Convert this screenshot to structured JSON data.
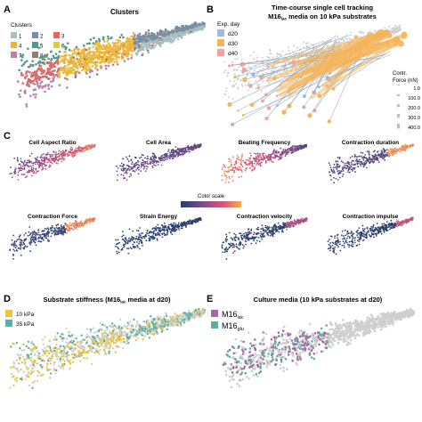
{
  "panels": {
    "a": {
      "letter": "A",
      "title": "Clusters",
      "legend_title": "Clusters",
      "clusters": [
        {
          "label": "1",
          "color": "#a9bfc2"
        },
        {
          "label": "2",
          "color": "#7a8fa3"
        },
        {
          "label": "3",
          "color": "#d96b6b"
        },
        {
          "label": "4",
          "color": "#f0b23c"
        },
        {
          "label": "5",
          "color": "#4e9c8a"
        },
        {
          "label": "6",
          "color": "#e0cc3f"
        },
        {
          "label": "7",
          "color": "#b783a9"
        },
        {
          "label": "8",
          "color": "#a07a66"
        }
      ]
    },
    "b": {
      "letter": "B",
      "title_line1": "Time-course single cell tracking",
      "title_line2_pre": "M16",
      "title_line2_sub": "lac",
      "title_line2_post": " media on 10 kPa substrates",
      "legend_title": "Exp. day",
      "days": [
        {
          "label": "d20",
          "color": "#9db8d9"
        },
        {
          "label": "d30",
          "color": "#f5b458"
        },
        {
          "label": "d40",
          "color": "#f1a1a1"
        }
      ],
      "force_title_line1": "Contr.",
      "force_title_line2": "Force (nN)",
      "force_values": [
        "1.0",
        "100.0",
        "200.0",
        "300.0",
        "400.0"
      ]
    },
    "c": {
      "letter": "C",
      "subpanels": [
        "Cell Aspect Ratio",
        "Cell Area",
        "Beating Frequency",
        "Contraction duration",
        "Contraction Force",
        "Strain Energy",
        "Contraction velocity",
        "Contraction impulse"
      ],
      "color_scale_label": "Color scale"
    },
    "d": {
      "letter": "D",
      "title_pre": "Substrate stiffness (M16",
      "title_sub": "lac",
      "title_post": " media at d20)",
      "legend": [
        {
          "label": "10 kPa",
          "color": "#e9c43c"
        },
        {
          "label": "35 kPa",
          "color": "#5bb0a6"
        }
      ]
    },
    "e": {
      "letter": "E",
      "title": "Culture media (10 kPa substrates at d20)",
      "legend": [
        {
          "main": "M16",
          "sub": "lac",
          "color": "#a769a1"
        },
        {
          "main": "M16",
          "sub": "glu",
          "color": "#5bb0a6"
        }
      ]
    }
  },
  "colors": {
    "background_points": "#cfcfcf",
    "scale_low": "#1f3f6b",
    "scale_mid1": "#7a4d8e",
    "scale_mid2": "#d8567a",
    "scale_high": "#f2b04b"
  }
}
